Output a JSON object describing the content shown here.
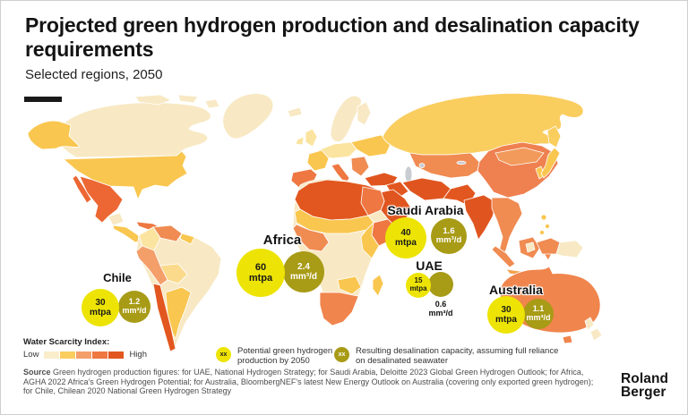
{
  "header": {
    "title": "Projected green hydrogen production and desalination capacity requirements",
    "subtitle": "Selected regions, 2050"
  },
  "chart_data": {
    "type": "map-bubble-choropleth",
    "title": "Projected green hydrogen production and desalination capacity requirements",
    "subtitle": "Selected regions, 2050",
    "choropleth_metric": "Water Scarcity Index",
    "choropleth_scale": {
      "min_label": "Low",
      "max_label": "High"
    },
    "categories": [
      "Chile",
      "Africa",
      "Saudi Arabia",
      "UAE",
      "Australia"
    ],
    "series": [
      {
        "name": "Potential green hydrogen production by 2050",
        "unit": "mtpa",
        "values": [
          30,
          60,
          40,
          15,
          30
        ]
      },
      {
        "name": "Resulting desalination capacity, assuming full reliance on desalinated seawater",
        "unit": "mm³/d",
        "values": [
          1.2,
          2.4,
          1.6,
          0.6,
          1.1
        ]
      }
    ],
    "legend_position": "bottom"
  },
  "bubbles": {
    "chile": {
      "label": "Chile",
      "h_value": "30",
      "h_unit": "mtpa",
      "d_value": "1.2",
      "d_unit": "mm³/d"
    },
    "africa": {
      "label": "Africa",
      "h_value": "60",
      "h_unit": "mtpa",
      "d_value": "2.4",
      "d_unit": "mm³/d"
    },
    "saudi": {
      "label": "Saudi Arabia",
      "h_value": "40",
      "h_unit": "mtpa",
      "d_value": "1.6",
      "d_unit": "mm³/d"
    },
    "uae": {
      "label": "UAE",
      "h_value": "15",
      "h_unit": "mtpa",
      "d_value": "0.6",
      "d_unit": "mm³/d"
    },
    "australia": {
      "label": "Australia",
      "h_value": "30",
      "h_unit": "mtpa",
      "d_value": "1.1",
      "d_unit": "mm³/d"
    }
  },
  "legend": {
    "scarcity_title": "Water Scarcity Index:",
    "low_label": "Low",
    "high_label": "High",
    "hydrogen_marker": "xx",
    "hydrogen_text": "Potential green hydrogen production by 2050",
    "desalination_marker": "xx",
    "desalination_text": "Resulting desalination capacity, assuming full reliance on desalinated seawater"
  },
  "source": {
    "label": "Source",
    "text": "Green hydrogen production figures: for UAE, National Hydrogen Strategy; for Saudi Arabia, Deloitte 2023 Global Green Hydrogen Outlook; for Africa, AGHA 2022 Africa's Green Hydrogen Potential; for Australia, BloombergNEF's latest New Energy Outlook on Australia (covering only exported green hydrogen); for Chile, Chilean 2020 National Green Hydrogen Strategy"
  },
  "branding": {
    "name_line1": "Roland",
    "name_line2": "Berger"
  },
  "colors": {
    "hydrogen_bubble": "#EDE405",
    "desalination_bubble": "#A89B16",
    "scarcity_ramp": [
      "#FAEDCB",
      "#FACD5F",
      "#F49E6A",
      "#EE7742",
      "#E2571F"
    ]
  }
}
